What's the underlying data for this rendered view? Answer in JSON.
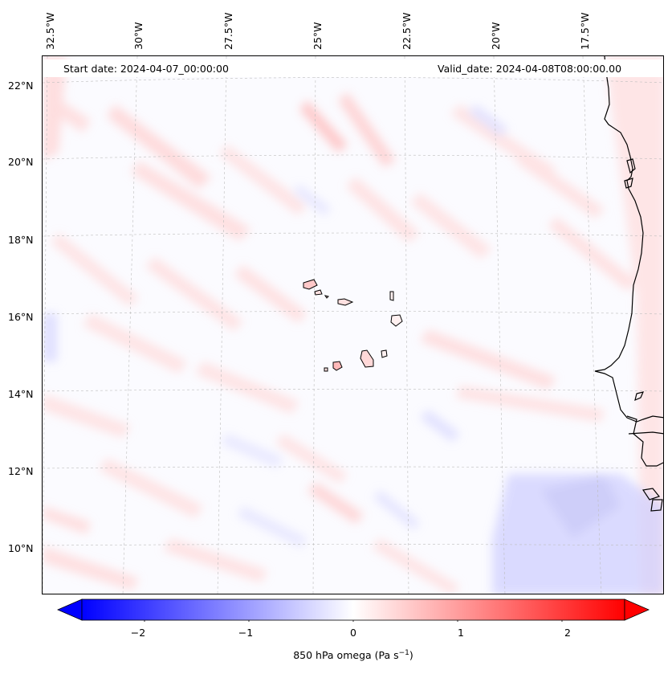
{
  "map": {
    "start_date": "Start date: 2024-04-07_00:00:00",
    "valid_date": "Valid_date: 2024-04-08T08:00:00.00",
    "lon_labels": [
      "32.5°W",
      "30°W",
      "27.5°W",
      "25°W",
      "22.5°W",
      "20°W",
      "17.5°W"
    ],
    "lat_labels": [
      "22°N",
      "20°N",
      "18°N",
      "16°N",
      "14°N",
      "12°N",
      "10°N"
    ],
    "colors": {
      "positive": "#ff0000",
      "negative": "#0000ff",
      "neutral": "#ffffff",
      "coastline": "#000000",
      "gridline": "#bbbbbb"
    }
  },
  "colorbar": {
    "title_prefix": "850 hPa omega (Pa s",
    "title_sup": "−1",
    "title_suffix": ")",
    "tick_labels": [
      "−2",
      "−1",
      "0",
      "1",
      "2"
    ],
    "ticks": [
      -2,
      -1,
      0,
      1,
      2
    ],
    "min": -2.6,
    "max": 2.6
  }
}
